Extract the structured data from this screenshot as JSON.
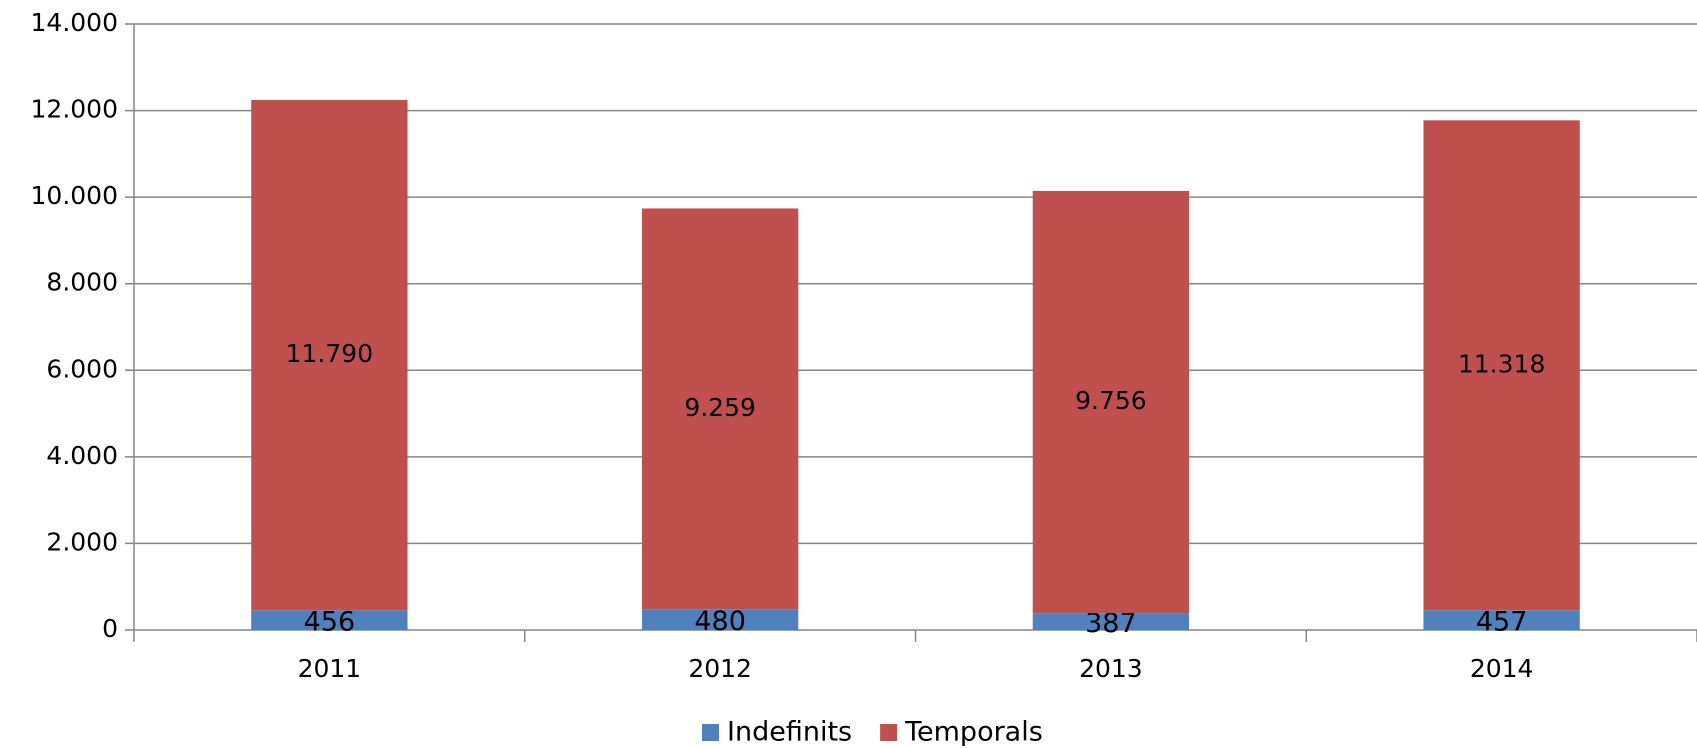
{
  "chart_data": {
    "type": "bar",
    "stacked": true,
    "categories": [
      "2011",
      "2012",
      "2013",
      "2014"
    ],
    "series": [
      {
        "name": "Indefinits",
        "color": "#4f81bd",
        "values": [
          456,
          480,
          387,
          457
        ],
        "value_labels": [
          "456",
          "480",
          "387",
          "457"
        ]
      },
      {
        "name": "Temporals",
        "color": "#c0504d",
        "values": [
          11790,
          9259,
          9756,
          11318
        ],
        "value_labels": [
          "11.790",
          "9.259",
          "9.756",
          "11.318"
        ]
      }
    ],
    "ylim": [
      0,
      14000
    ],
    "yticks": [
      0,
      {
        "value": 2000,
        "label": "2.000"
      },
      {
        "value": 4000,
        "label": "4.000"
      },
      {
        "value": 6000,
        "label": "6.000"
      },
      {
        "value": 8000,
        "label": "8.000"
      },
      {
        "value": 10000,
        "label": "10.000"
      },
      {
        "value": 12000,
        "label": "12.000"
      },
      {
        "value": 14000,
        "label": "14.000"
      }
    ],
    "grid": true,
    "legend": "bottom"
  }
}
